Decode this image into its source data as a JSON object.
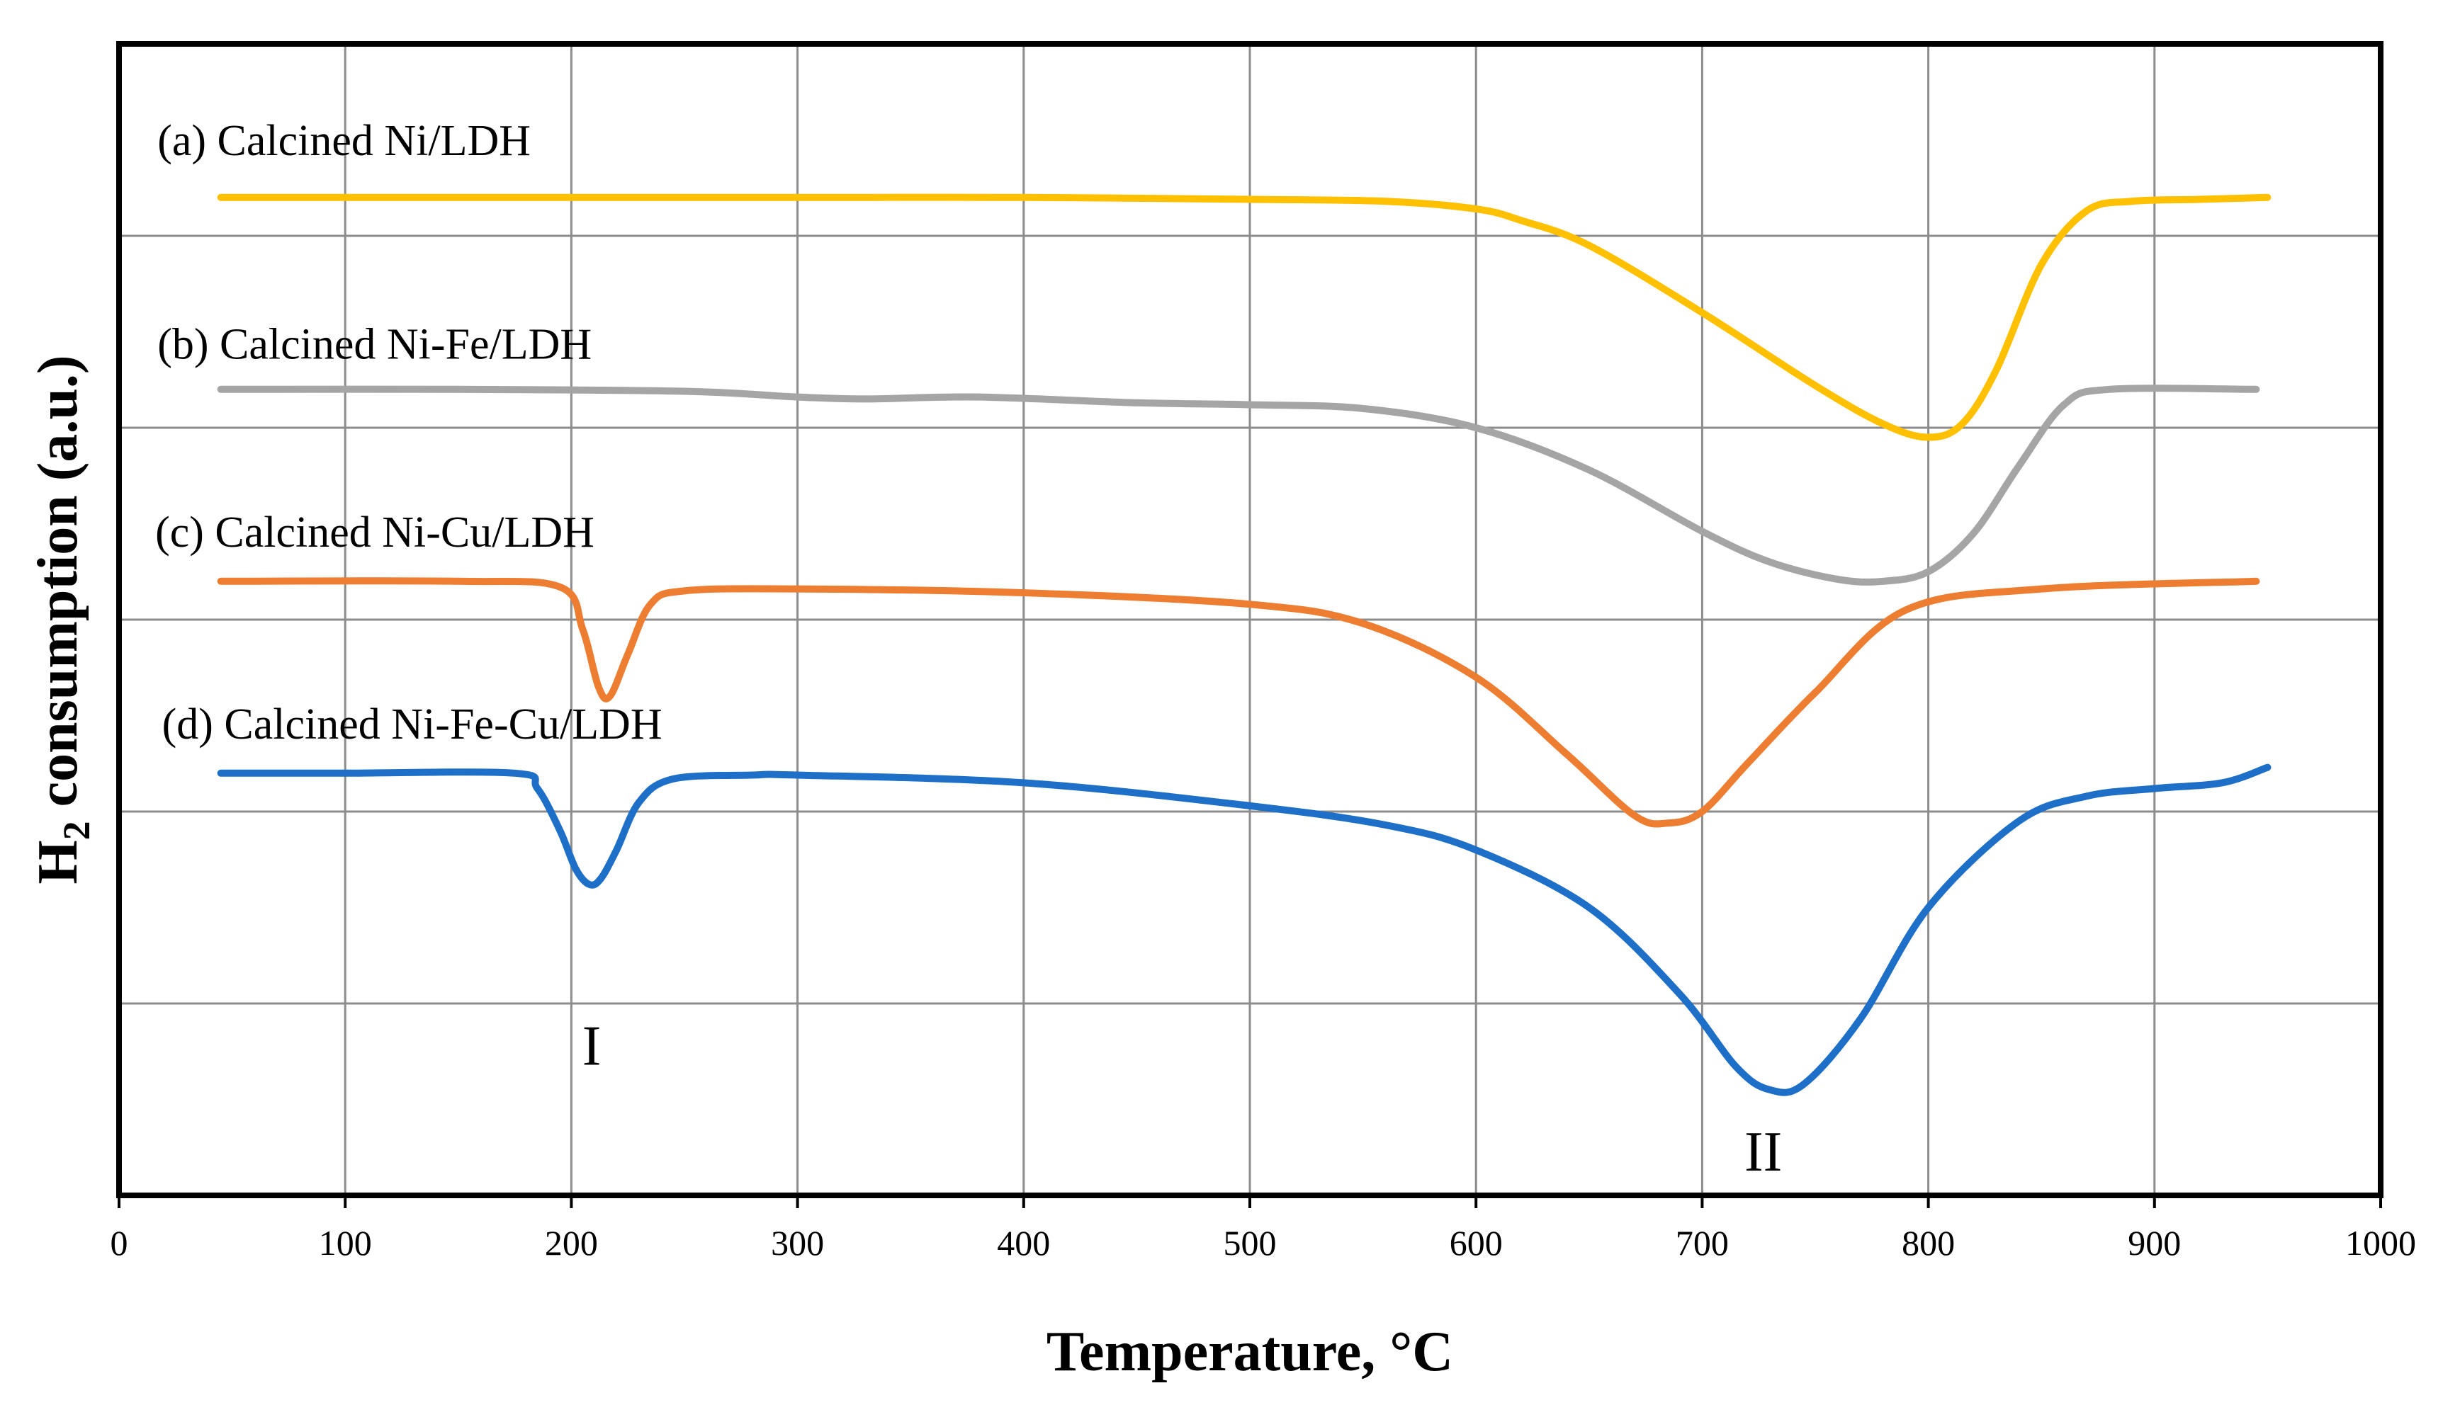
{
  "chart_data": {
    "type": "line",
    "title": "",
    "xlabel": "Temperature, °C",
    "ylabel": "H2 consumption (a.u.)",
    "ylabel_main": "H",
    "ylabel_sub": "2",
    "ylabel_rest": " consumption (a.u.)",
    "xlim": [
      0,
      1000
    ],
    "ylim": [
      0,
      6
    ],
    "x_ticks": [
      0,
      100,
      200,
      300,
      400,
      500,
      600,
      700,
      800,
      900,
      1000
    ],
    "x_tick_labels": [
      "0",
      "100",
      "200",
      "300",
      "400",
      "500",
      "600",
      "700",
      "800",
      "900",
      "1000"
    ],
    "y_grid": [
      1,
      2,
      3,
      4,
      5
    ],
    "grid": true,
    "legend_placement": "inline-left",
    "series": [
      {
        "name": "(a) Calcined Ni/LDH",
        "color": "#FFC000",
        "label_x": 17,
        "label_y": 5.42,
        "x": [
          45,
          100,
          200,
          300,
          400,
          500,
          560,
          600,
          620,
          650,
          700,
          750,
          780,
          800,
          815,
          830,
          850,
          870,
          890,
          920,
          950
        ],
        "y": [
          5.2,
          5.2,
          5.2,
          5.2,
          5.2,
          5.19,
          5.18,
          5.14,
          5.08,
          4.95,
          4.6,
          4.22,
          4.02,
          3.95,
          4.02,
          4.3,
          4.85,
          5.13,
          5.18,
          5.19,
          5.2
        ]
      },
      {
        "name": "(b) Calcined Ni-Fe/LDH",
        "color": "#A5A5A5",
        "label_x": 17,
        "label_y": 4.36,
        "x": [
          45,
          150,
          250,
          300,
          330,
          380,
          450,
          500,
          550,
          600,
          650,
          700,
          730,
          760,
          780,
          800,
          820,
          840,
          860,
          880,
          945
        ],
        "y": [
          4.2,
          4.2,
          4.19,
          4.16,
          4.15,
          4.16,
          4.13,
          4.12,
          4.1,
          4.0,
          3.78,
          3.46,
          3.3,
          3.21,
          3.2,
          3.25,
          3.45,
          3.8,
          4.12,
          4.2,
          4.2
        ]
      },
      {
        "name": "(c) Calcined Ni-Cu/LDH",
        "color": "#ED7D31",
        "label_x": 16,
        "label_y": 3.38,
        "x": [
          45,
          150,
          195,
          205,
          212,
          217,
          225,
          235,
          250,
          300,
          400,
          500,
          550,
          600,
          640,
          670,
          685,
          700,
          720,
          750,
          790,
          850,
          945
        ],
        "y": [
          3.2,
          3.2,
          3.17,
          2.95,
          2.65,
          2.6,
          2.82,
          3.08,
          3.15,
          3.16,
          3.14,
          3.08,
          2.98,
          2.7,
          2.3,
          1.98,
          1.94,
          2.0,
          2.25,
          2.62,
          3.05,
          3.16,
          3.2
        ]
      },
      {
        "name": "(d) Calcined Ni-Fe-Cu/LDH",
        "color": "#1E6FC8",
        "label_x": 19,
        "label_y": 2.38,
        "x": [
          45,
          100,
          175,
          185,
          195,
          202,
          208,
          213,
          220,
          230,
          245,
          280,
          300,
          400,
          500,
          560,
          600,
          650,
          690,
          715,
          730,
          745,
          770,
          800,
          840,
          870,
          900,
          930,
          950
        ],
        "y": [
          2.2,
          2.2,
          2.2,
          2.12,
          1.9,
          1.7,
          1.62,
          1.65,
          1.8,
          2.05,
          2.17,
          2.19,
          2.19,
          2.15,
          2.03,
          1.93,
          1.8,
          1.5,
          1.05,
          0.67,
          0.55,
          0.58,
          0.92,
          1.5,
          1.95,
          2.08,
          2.12,
          2.15,
          2.23
        ]
      }
    ],
    "annotations": [
      {
        "text": "I",
        "x": 209,
        "y": 0.68
      },
      {
        "text": "II",
        "x": 727,
        "y": 0.13
      }
    ]
  }
}
